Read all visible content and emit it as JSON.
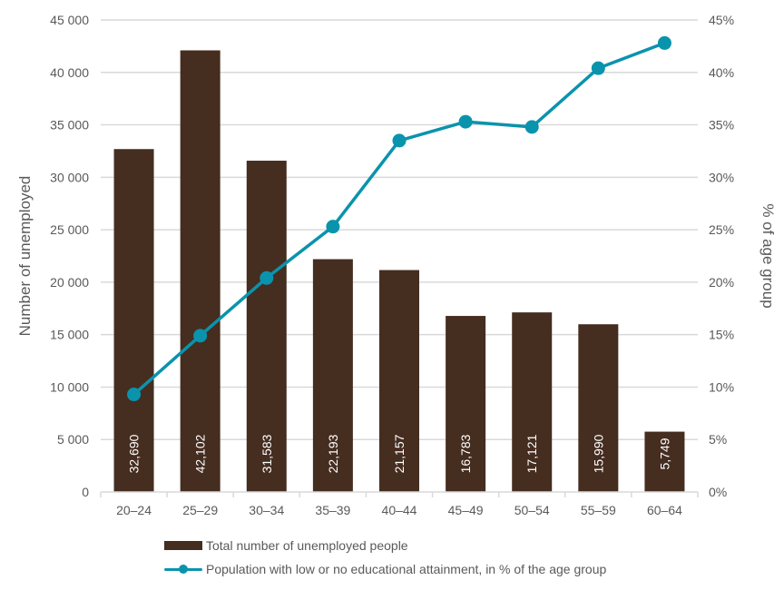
{
  "chart_data": {
    "type": "bar+line",
    "title": "",
    "categories": [
      "20–24",
      "25–29",
      "30–34",
      "35–39",
      "40–44",
      "45–49",
      "50–54",
      "55–59",
      "60–64"
    ],
    "series": [
      {
        "name": "Total number of unemployed people",
        "type": "bar",
        "axis": "left",
        "color": "#452d20",
        "values": [
          32690,
          42102,
          31583,
          22193,
          21157,
          16783,
          17121,
          15990,
          5749
        ],
        "data_labels": [
          "32,690",
          "42,102",
          "31,583",
          "22,193",
          "21,157",
          "16,783",
          "17,121",
          "15,990",
          "5,749"
        ]
      },
      {
        "name": "Population with low or no educational attainment, in % of the age group",
        "type": "line",
        "axis": "right",
        "color": "#0a93ad",
        "values": [
          9.3,
          14.9,
          20.4,
          25.3,
          33.5,
          35.3,
          34.8,
          40.4,
          42.8
        ]
      }
    ],
    "y_left": {
      "label": "Number of unemployed",
      "range": [
        0,
        45000
      ],
      "ticks": [
        0,
        5000,
        10000,
        15000,
        20000,
        25000,
        30000,
        35000,
        40000,
        45000
      ],
      "tick_labels": [
        "0",
        "5 000",
        "10 000",
        "15 000",
        "20 000",
        "25 000",
        "30 000",
        "35 000",
        "40 000",
        "45 000"
      ]
    },
    "y_right": {
      "label": "% of age group",
      "range": [
        0,
        45
      ],
      "ticks": [
        0,
        5,
        10,
        15,
        20,
        25,
        30,
        35,
        40,
        45
      ],
      "tick_labels": [
        "0%",
        "5%",
        "10%",
        "15%",
        "20%",
        "25%",
        "30%",
        "35%",
        "40%",
        "45%"
      ]
    },
    "xlabel": "",
    "grid": true,
    "legend_position": "bottom",
    "gridline_color": "#d9d9d9"
  }
}
